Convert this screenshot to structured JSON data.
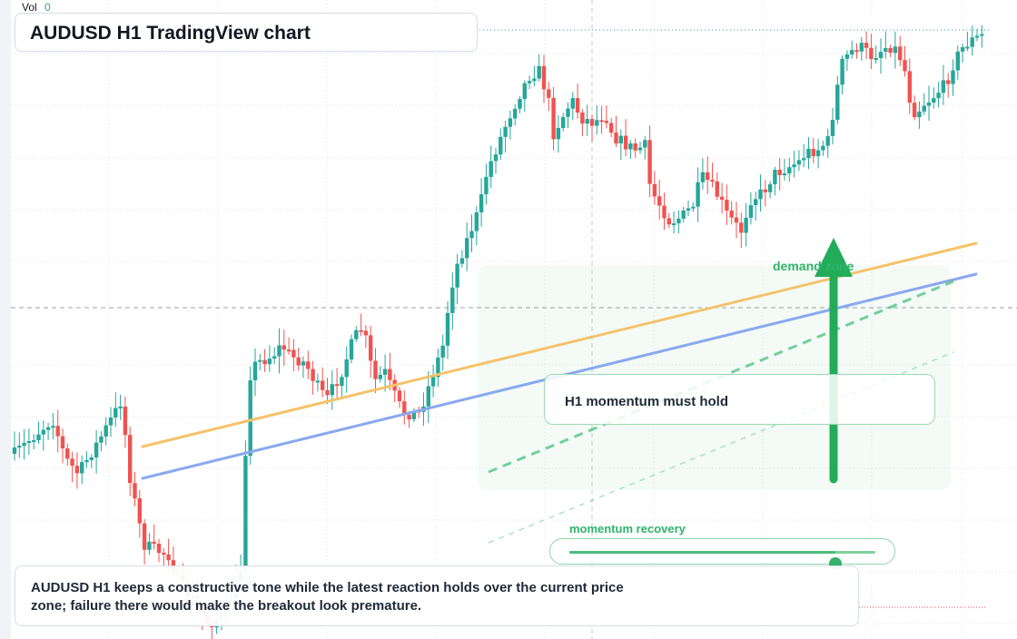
{
  "indicator": {
    "label": "Vol",
    "value": "0"
  },
  "title": "AUDUSD H1 TradingView chart",
  "callout": {
    "text": "H1 momentum must hold"
  },
  "zone": {
    "label": "demand zone"
  },
  "momentum": {
    "label": "momentum recovery",
    "level": 0.87
  },
  "summary": {
    "text": "AUDUSD H1 keeps a constructive tone while the latest reaction holds over the current price zone; failure there would make the breakout look premature."
  },
  "colors": {
    "up": "#26a69a",
    "down": "#ef5350",
    "accent_green": "#2fb36a",
    "ma_fast": "#f5c26b",
    "ma_slow": "#8aa9ec"
  },
  "chart_data": {
    "type": "candlestick",
    "symbol": "AUDUSD",
    "timeframe": "H1",
    "grid": true,
    "volume": 0
  }
}
